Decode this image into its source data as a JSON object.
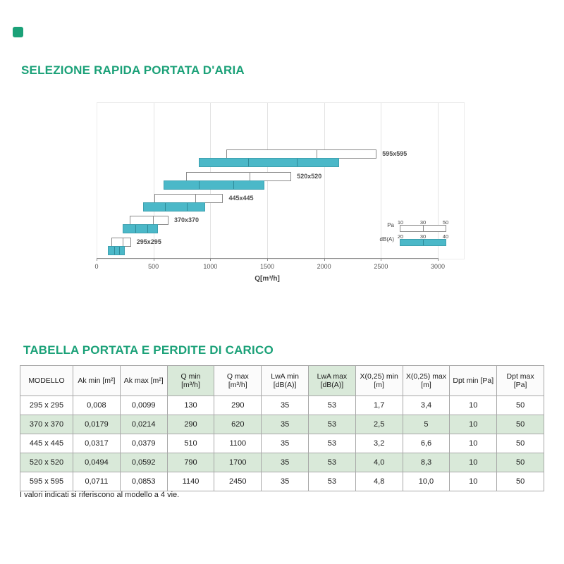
{
  "page": {
    "title1": "SELEZIONE RAPIDA PORTATA D'ARIA",
    "title2": "TABELLA PORTATA E PERDITE DI CARICO",
    "footnote": "I valori indicati si riferiscono al modello a 4 vie.",
    "accent_color": "#1ba178"
  },
  "chart_data": {
    "type": "bar",
    "variant": "horizontal-range-bars",
    "title": "",
    "xlabel": "Q[m³/h]",
    "xlim": [
      0,
      3000
    ],
    "xticks": [
      0,
      500,
      1000,
      1500,
      2000,
      2500,
      3000
    ],
    "grid": true,
    "series": [
      {
        "label": "595x595",
        "pa_q_range": [
          1140,
          2450
        ],
        "dba_q_range": [
          900,
          2120
        ]
      },
      {
        "label": "520x520",
        "pa_q_range": [
          790,
          1700
        ],
        "dba_q_range": [
          590,
          1460
        ]
      },
      {
        "label": "445x445",
        "pa_q_range": [
          510,
          1100
        ],
        "dba_q_range": [
          410,
          945
        ]
      },
      {
        "label": "370x370",
        "pa_q_range": [
          290,
          620
        ],
        "dba_q_range": [
          230,
          530
        ]
      },
      {
        "label": "295x295",
        "pa_q_range": [
          130,
          290
        ],
        "dba_q_range": [
          100,
          235
        ]
      }
    ],
    "legend": {
      "position": "inside-right",
      "pa": {
        "label": "Pa",
        "ticks": [
          "10",
          "30",
          "50"
        ]
      },
      "dba": {
        "label": "dB(A)",
        "ticks": [
          "20",
          "30",
          "40"
        ]
      }
    },
    "colors": {
      "pa_bar": "#ffffff",
      "dba_bar": "#4bb8c8"
    }
  },
  "table": {
    "headers": [
      "MODELLO",
      "Ak min [m²]",
      "Ak max [m²]",
      "Q min\n[m³/h]",
      "Q max\n[m³/h]",
      "LwA min\n[dB(A)]",
      "LwA max\n[dB(A)]",
      "X(0,25) min\n[m]",
      "X(0,25) max\n[m]",
      "Dpt min [Pa]",
      "Dpt max\n[Pa]"
    ],
    "highlight_cols": [
      3,
      6
    ],
    "rows": [
      [
        "295 x 295",
        "0,008",
        "0,0099",
        "130",
        "290",
        "35",
        "53",
        "1,7",
        "3,4",
        "10",
        "50"
      ],
      [
        "370 x 370",
        "0,0179",
        "0,0214",
        "290",
        "620",
        "35",
        "53",
        "2,5",
        "5",
        "10",
        "50"
      ],
      [
        "445 x 445",
        "0,0317",
        "0,0379",
        "510",
        "1100",
        "35",
        "53",
        "3,2",
        "6,6",
        "10",
        "50"
      ],
      [
        "520 x 520",
        "0,0494",
        "0,0592",
        "790",
        "1700",
        "35",
        "53",
        "4,0",
        "8,3",
        "10",
        "50"
      ],
      [
        "595 x 595",
        "0,0711",
        "0,0853",
        "1140",
        "2450",
        "35",
        "53",
        "4,8",
        "10,0",
        "10",
        "50"
      ]
    ]
  }
}
